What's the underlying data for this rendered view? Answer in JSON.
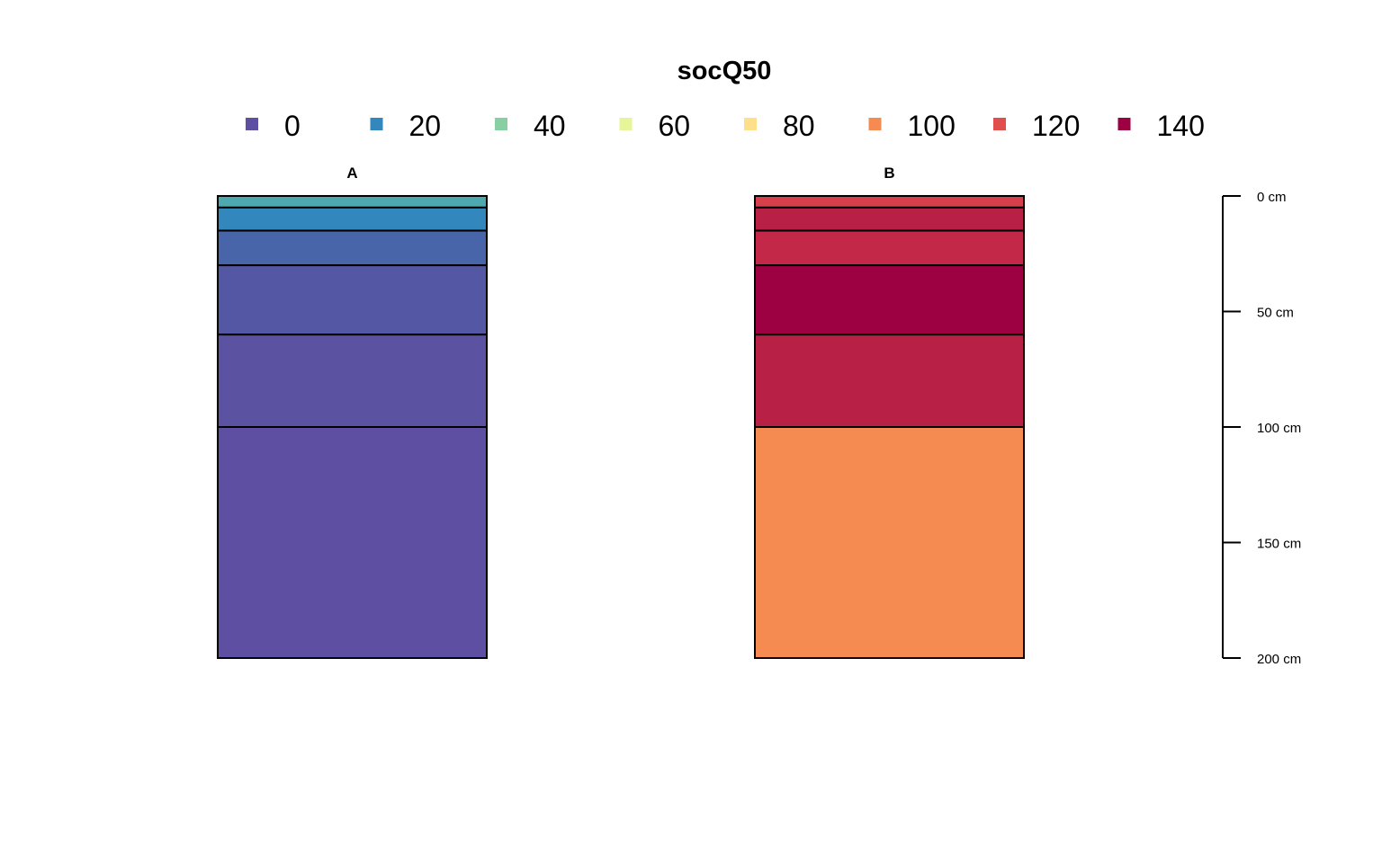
{
  "chart_data": {
    "type": "bar",
    "title": "socQ50",
    "legend": {
      "placement": "top",
      "entries": [
        {
          "label": "0",
          "color": "#5e4fa2"
        },
        {
          "label": "20",
          "color": "#3288bd"
        },
        {
          "label": "40",
          "color": "#88d0a4"
        },
        {
          "label": "60",
          "color": "#e6f598"
        },
        {
          "label": "80",
          "color": "#fee08b"
        },
        {
          "label": "100",
          "color": "#f68b52"
        },
        {
          "label": "120",
          "color": "#e04f4b"
        },
        {
          "label": "140",
          "color": "#9e0142"
        }
      ]
    },
    "depth_axis": {
      "range": [
        0,
        200
      ],
      "ticks": [
        0,
        50,
        100,
        150,
        200
      ],
      "tick_labels": [
        "0 cm",
        "50 cm",
        "100 cm",
        "150 cm",
        "200 cm"
      ]
    },
    "profiles": [
      {
        "label": "A",
        "horizons": [
          {
            "top": 0,
            "bottom": 5,
            "color": "#4da8b0"
          },
          {
            "top": 5,
            "bottom": 15,
            "color": "#3288bd"
          },
          {
            "top": 15,
            "bottom": 30,
            "color": "#4865a9"
          },
          {
            "top": 30,
            "bottom": 60,
            "color": "#5457a3"
          },
          {
            "top": 60,
            "bottom": 100,
            "color": "#5b52a1"
          },
          {
            "top": 100,
            "bottom": 200,
            "color": "#5e4fa2"
          }
        ]
      },
      {
        "label": "B",
        "horizons": [
          {
            "top": 0,
            "bottom": 5,
            "color": "#d5404b"
          },
          {
            "top": 5,
            "bottom": 15,
            "color": "#b92046"
          },
          {
            "top": 15,
            "bottom": 30,
            "color": "#c42848"
          },
          {
            "top": 30,
            "bottom": 60,
            "color": "#9e0142"
          },
          {
            "top": 60,
            "bottom": 100,
            "color": "#b92046"
          },
          {
            "top": 100,
            "bottom": 200,
            "color": "#f68b52"
          }
        ]
      }
    ]
  }
}
